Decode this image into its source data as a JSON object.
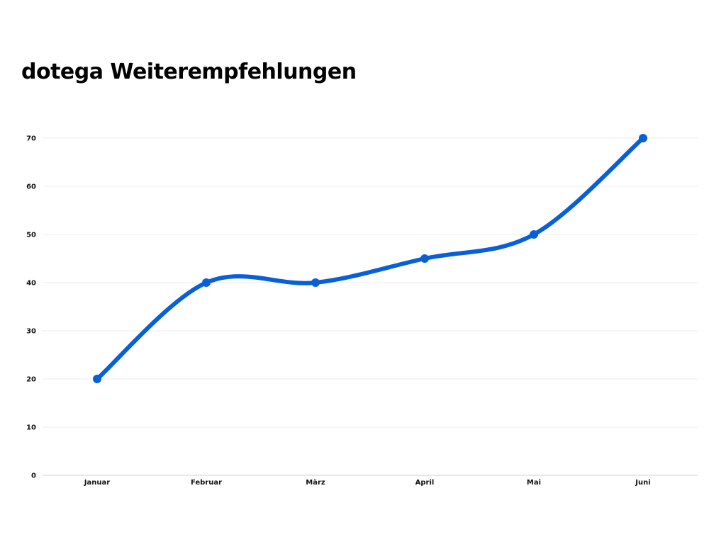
{
  "chart_data": {
    "type": "line",
    "title": "dotega Weiterempfehlungen",
    "xlabel": "",
    "ylabel": "",
    "categories": [
      "Januar",
      "Februar",
      "März",
      "April",
      "Mai",
      "Juni"
    ],
    "series": [
      {
        "name": "Weiterempfehlungen",
        "values": [
          20,
          40,
          40,
          45,
          50,
          70
        ]
      }
    ],
    "ylim": [
      0,
      70
    ],
    "yticks": [
      0,
      10,
      20,
      30,
      40,
      50,
      60,
      70
    ],
    "grid": true,
    "smooth": true,
    "line_color": "#0760d8",
    "grid_color": "#ececec",
    "axis_color": "#cfcfcf"
  }
}
